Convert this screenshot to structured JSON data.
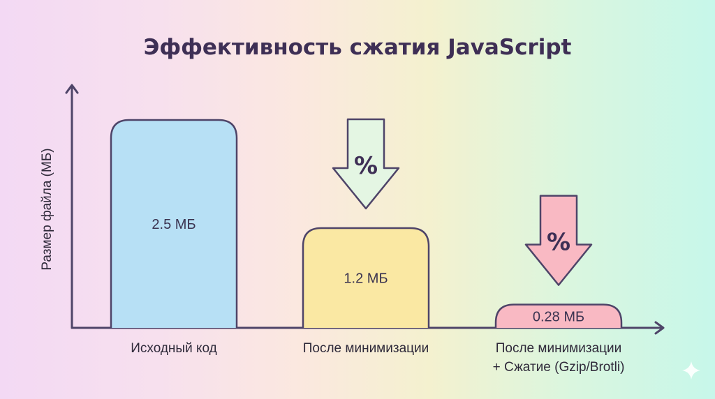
{
  "chart_data": {
    "type": "bar",
    "title": "Эффективность сжатия JavaScript",
    "ylabel": "Размер файла (МБ)",
    "xlabel": "",
    "categories": [
      [
        "Исходный код"
      ],
      [
        "После минимизации"
      ],
      [
        "После минимизации",
        "+ Сжатие (Gzip/Brotli)"
      ]
    ],
    "values": [
      2.5,
      1.2,
      0.28
    ],
    "value_labels": [
      "2.5 МБ",
      "1.2 МБ",
      "0.28 МБ"
    ],
    "ylim": [
      0,
      2.5
    ],
    "grid": false,
    "legend": "none",
    "bar_colors": [
      "#b7e0f5",
      "#fae8a3",
      "#f9b9c3"
    ],
    "annotations": [
      {
        "symbol": "%",
        "above_category": 1,
        "color": "#e4f6e3"
      },
      {
        "symbol": "%",
        "above_category": 2,
        "color": "#f9b9c3"
      }
    ],
    "axis_color": "#4e4468"
  }
}
